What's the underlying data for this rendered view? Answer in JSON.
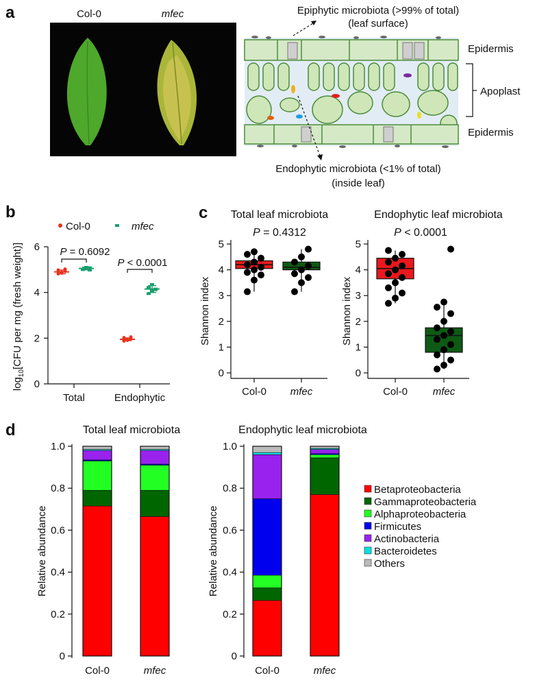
{
  "panel_a": {
    "label": "a",
    "leaf_labels": [
      "Col-0",
      "mfec"
    ],
    "epiphytic_line1": "Epiphytic microbiota (>99% of total)",
    "epiphytic_line2": "(leaf surface)",
    "endophytic_line1": "Endophytic microbiota (<1% of total)",
    "endophytic_line2": "(inside leaf)",
    "epidermis_top": "Epidermis",
    "apoplast": "Apoplast",
    "epidermis_bottom": "Epidermis"
  },
  "chart_data": [
    {
      "id": "b",
      "label": "b",
      "type": "scatter",
      "legend": [
        "Col-0",
        "mfec"
      ],
      "colors": {
        "Col-0": "#e8321e",
        "mfec": "#1b9e6e"
      },
      "ylabel_prefix": "log",
      "ylabel_sub": "10",
      "ylabel_suffix": "[CFU per mg (fresh weight)]",
      "ylim": [
        0,
        6
      ],
      "yticks": [
        "0",
        "2",
        "4",
        "6"
      ],
      "categories": [
        "Total",
        "Endophytic"
      ],
      "means": {
        "Col-0": [
          4.9,
          1.95
        ],
        "mfec": [
          5.05,
          4.15
        ]
      },
      "sd": {
        "Col-0": [
          0.08,
          0.06
        ],
        "mfec": [
          0.06,
          0.15
        ]
      },
      "points": {
        "Col-0": [
          [
            4.82,
            4.88,
            4.93,
            4.98,
            4.85,
            5.02
          ],
          [
            1.88,
            1.93,
            1.97,
            2.02,
            1.91,
            2.05
          ]
        ],
        "mfec": [
          [
            5.0,
            5.05,
            5.08,
            5.02,
            5.1,
            4.98
          ],
          [
            3.95,
            4.08,
            4.15,
            4.22,
            4.35,
            4.12
          ]
        ]
      },
      "annotations": [
        "P = 0.6092",
        "P < 0.0001"
      ]
    },
    {
      "id": "c1",
      "label": "c",
      "type": "boxplot",
      "title": "Total leaf microbiota",
      "pvalue": "P = 0.4312",
      "ylabel": "Shannon index",
      "ylim": [
        0,
        5
      ],
      "yticks": [
        "0",
        "1",
        "2",
        "3",
        "4",
        "5"
      ],
      "categories": [
        "Col-0",
        "mfec"
      ],
      "box_colors": [
        "#e8181e",
        "#0e5a14"
      ],
      "boxes": [
        {
          "q1": 4.05,
          "median": 4.2,
          "q3": 4.35,
          "min": 3.15,
          "max": 4.7
        },
        {
          "q1": 4.0,
          "median": 4.1,
          "q3": 4.3,
          "min": 3.15,
          "max": 4.8
        }
      ],
      "points": [
        [
          3.15,
          3.6,
          3.8,
          3.9,
          4.0,
          4.1,
          4.2,
          4.3,
          4.45,
          4.6,
          4.7
        ],
        [
          3.15,
          3.5,
          3.7,
          3.85,
          4.0,
          4.15,
          4.3,
          4.5,
          4.8
        ]
      ]
    },
    {
      "id": "c2",
      "type": "boxplot",
      "title": "Endophytic leaf microbiota",
      "pvalue": "P < 0.0001",
      "ylabel": "Shannon index",
      "ylim": [
        0,
        5
      ],
      "yticks": [
        "0",
        "1",
        "2",
        "3",
        "4",
        "5"
      ],
      "categories": [
        "Col-0",
        "mfec"
      ],
      "box_colors": [
        "#e8181e",
        "#0e5a14"
      ],
      "boxes": [
        {
          "q1": 3.65,
          "median": 4.05,
          "q3": 4.45,
          "min": 2.7,
          "max": 4.75
        },
        {
          "q1": 0.8,
          "median": 1.45,
          "q3": 1.75,
          "min": 0.15,
          "max": 2.75
        }
      ],
      "points": [
        [
          2.7,
          2.9,
          3.1,
          3.3,
          3.5,
          3.7,
          3.85,
          4.0,
          4.15,
          4.3,
          4.45,
          4.6,
          4.75
        ],
        [
          0.15,
          0.3,
          0.5,
          0.7,
          0.9,
          1.1,
          1.3,
          1.45,
          1.6,
          1.75,
          2.0,
          2.3,
          2.55,
          2.75,
          4.8
        ]
      ]
    },
    {
      "id": "d1",
      "label": "d",
      "type": "bar",
      "stacked": true,
      "title": "Total leaf microbiota",
      "ylabel": "Relative abundance",
      "ylim": [
        0,
        1
      ],
      "yticks": [
        "0",
        "0.2",
        "0.4",
        "0.6",
        "0.8",
        "1.0"
      ],
      "categories": [
        "Col-0",
        "mfec"
      ],
      "series": [
        {
          "name": "Betaproteobacteria",
          "values": [
            0.715,
            0.665
          ]
        },
        {
          "name": "Gammaproteobacteria",
          "values": [
            0.075,
            0.125
          ]
        },
        {
          "name": "Alphaproteobacteria",
          "values": [
            0.14,
            0.12
          ]
        },
        {
          "name": "Firmicutes",
          "values": [
            0.005,
            0.005
          ]
        },
        {
          "name": "Actinobacteria",
          "values": [
            0.045,
            0.065
          ]
        },
        {
          "name": "Bacteroidetes",
          "values": [
            0.005,
            0.005
          ]
        },
        {
          "name": "Others",
          "values": [
            0.015,
            0.015
          ]
        }
      ]
    },
    {
      "id": "d2",
      "type": "bar",
      "stacked": true,
      "title": "Endophytic leaf microbiota",
      "ylabel": "Relative abundance",
      "ylim": [
        0,
        1
      ],
      "yticks": [
        "0",
        "0.2",
        "0.4",
        "0.6",
        "0.8",
        "1.0"
      ],
      "categories": [
        "Col-0",
        "mfec"
      ],
      "series": [
        {
          "name": "Betaproteobacteria",
          "values": [
            0.265,
            0.77
          ]
        },
        {
          "name": "Gammaproteobacteria",
          "values": [
            0.06,
            0.175
          ]
        },
        {
          "name": "Alphaproteobacteria",
          "values": [
            0.06,
            0.015
          ]
        },
        {
          "name": "Firmicutes",
          "values": [
            0.365,
            0.005
          ]
        },
        {
          "name": "Actinobacteria",
          "values": [
            0.21,
            0.02
          ]
        },
        {
          "name": "Bacteroidetes",
          "values": [
            0.01,
            0.005
          ]
        },
        {
          "name": "Others",
          "values": [
            0.03,
            0.01
          ]
        }
      ]
    }
  ],
  "legend_d": {
    "items": [
      "Betaproteobacteria",
      "Gammaproteobacteria",
      "Alphaproteobacteria",
      "Firmicutes",
      "Actinobacteria",
      "Bacteroidetes",
      "Others"
    ],
    "colors": [
      "#ff0000",
      "#006600",
      "#22ff22",
      "#0000ee",
      "#9922ee",
      "#00e0e0",
      "#bbbbbb"
    ]
  }
}
